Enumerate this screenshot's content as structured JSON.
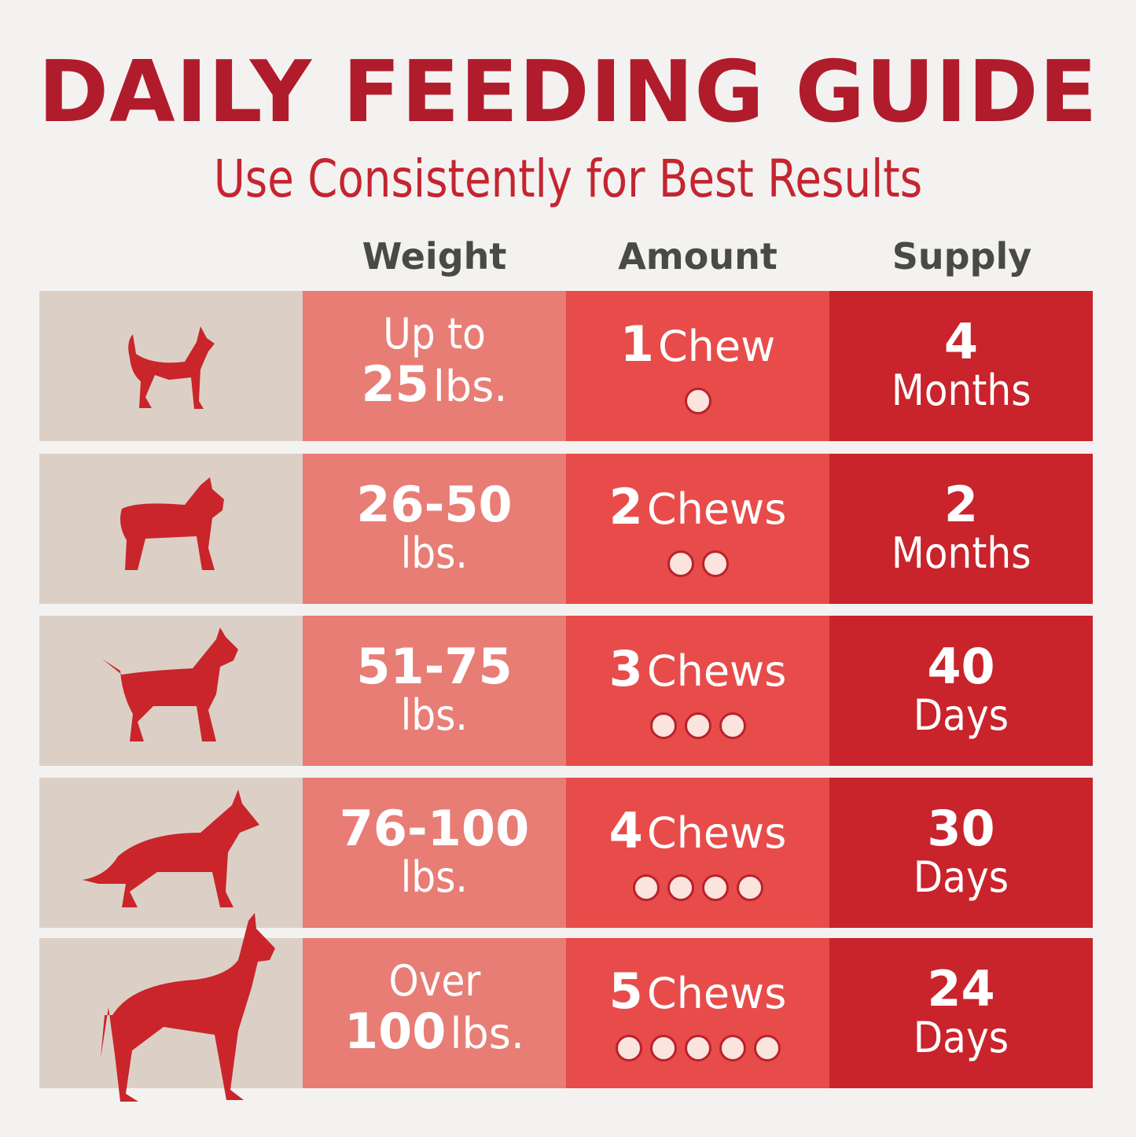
{
  "title": "DAILY FEEDING GUIDE",
  "subtitle": "Use Consistently for Best Results",
  "headers": [
    "Weight",
    "Amount",
    "Supply"
  ],
  "colors": {
    "title": "#b01c2b",
    "icon_column": "#dcd0c6",
    "weight_column": "#e77d75",
    "amount_column": "#e74c4a",
    "supply_column": "#c9232b",
    "dog": "#c9252b"
  },
  "rows": [
    {
      "icon": "small-dog-icon",
      "weight_top": "Up to",
      "weight_num": "25",
      "weight_unit": "lbs.",
      "amount_num": "1",
      "amount_unit": "Chew",
      "chews": 1,
      "supply_num": "4",
      "supply_unit": "Months"
    },
    {
      "icon": "bulldog-icon",
      "weight_num": "26-50",
      "weight_unit": "lbs.",
      "amount_num": "2",
      "amount_unit": "Chews",
      "chews": 2,
      "supply_num": "2",
      "supply_unit": "Months"
    },
    {
      "icon": "terrier-icon",
      "weight_num": "51-75",
      "weight_unit": "lbs.",
      "amount_num": "3",
      "amount_unit": "Chews",
      "chews": 3,
      "supply_num": "40",
      "supply_unit": "Days"
    },
    {
      "icon": "shepherd-icon",
      "weight_num": "76-100",
      "weight_unit": "lbs.",
      "amount_num": "4",
      "amount_unit": "Chews",
      "chews": 4,
      "supply_num": "30",
      "supply_unit": "Days"
    },
    {
      "icon": "great-dane-icon",
      "weight_top": "Over",
      "weight_num": "100",
      "weight_unit": "lbs.",
      "amount_num": "5",
      "amount_unit": "Chews",
      "chews": 5,
      "supply_num": "24",
      "supply_unit": "Days"
    }
  ]
}
